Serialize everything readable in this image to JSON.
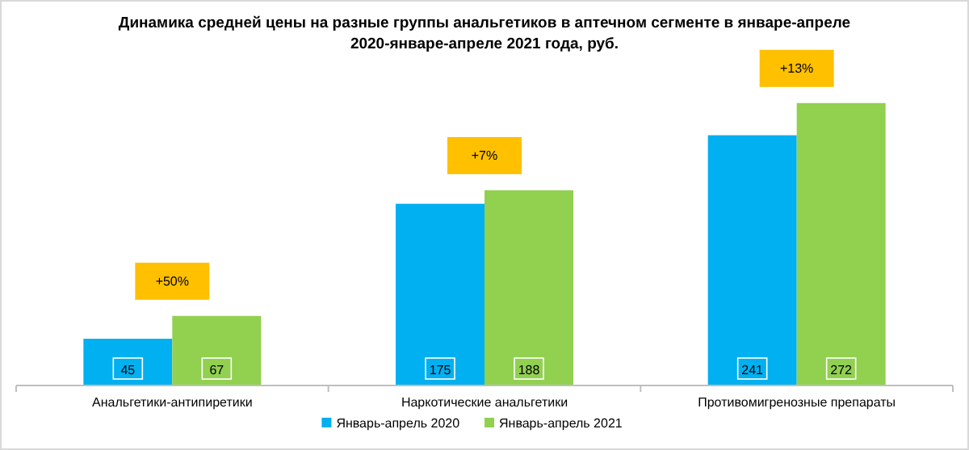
{
  "chart_data": {
    "type": "bar",
    "title": "Динамика средней цены на разные группы анальгетиков в аптечном сегменте в январе-апреле 2020-январе-апреле 2021 года, руб.",
    "categories": [
      "Анальгетики-антипиретики",
      "Наркотические анальгетики",
      "Противомигренозные препараты"
    ],
    "series": [
      {
        "name": "Январь-апрель 2020",
        "color": "#00b0f0",
        "values": [
          45,
          175,
          241
        ]
      },
      {
        "name": "Январь-апрель 2021",
        "color": "#92d050",
        "values": [
          67,
          188,
          272
        ]
      }
    ],
    "ylim": [
      0,
      320
    ],
    "data_labels": true,
    "legend": "bottom",
    "annotations": [
      "+50%",
      "+7%",
      "+13%"
    ]
  }
}
